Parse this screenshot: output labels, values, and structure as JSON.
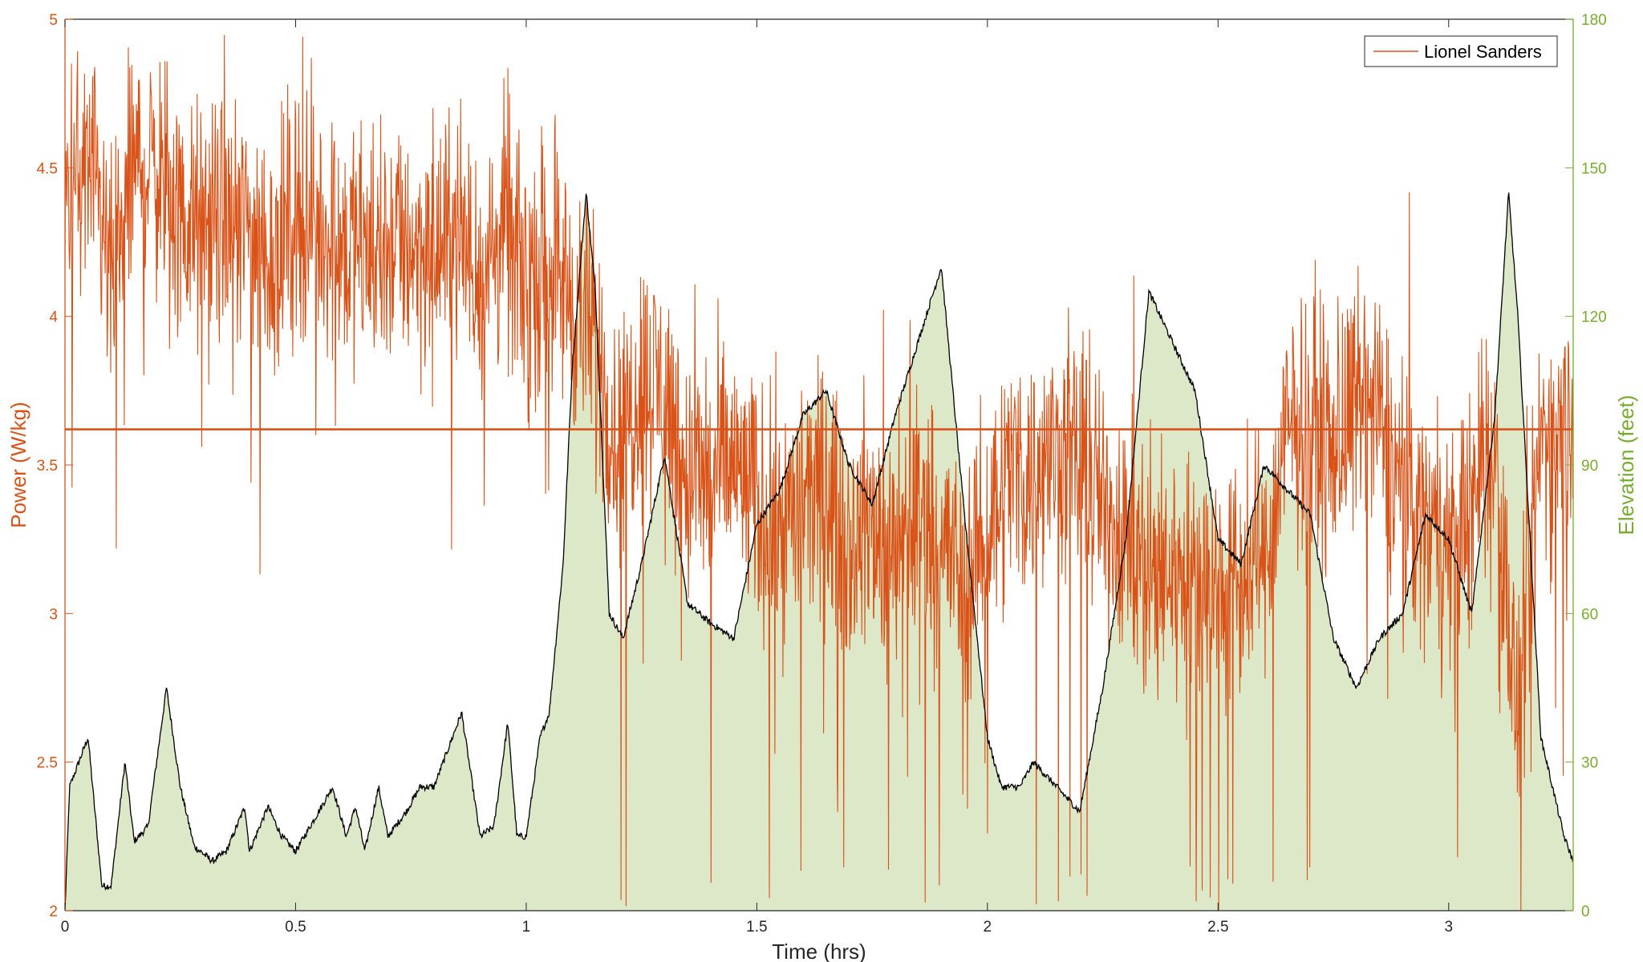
{
  "chart_data": {
    "type": "line",
    "title": "",
    "xlabel": "Time (hrs)",
    "ylabel_left": "Power (W/kg)",
    "ylabel_right": "Elevation (feet)",
    "xlim": [
      0,
      3.27
    ],
    "ylim_left": [
      2,
      5
    ],
    "ylim_right": [
      0,
      180
    ],
    "x_ticks": [
      "0",
      "0.5",
      "1",
      "1.5",
      "2",
      "2.5",
      "3"
    ],
    "y_ticks_left": [
      "2",
      "2.5",
      "3",
      "3.5",
      "4",
      "4.5",
      "5"
    ],
    "y_ticks_right": [
      "0",
      "30",
      "60",
      "90",
      "120",
      "150",
      "180"
    ],
    "grid": false,
    "legend": {
      "position": "top-right",
      "entries": [
        "Lionel Sanders"
      ]
    },
    "average_power": 3.62,
    "colors": {
      "power": "#d95319",
      "elevation_fill": "#dce8c8",
      "elevation_line": "#000000",
      "axis": "#262626",
      "right_axis": "#77ac30"
    },
    "series": [
      {
        "name": "Lionel Sanders",
        "axis": "left",
        "x": [
          0,
          0.05,
          0.1,
          0.15,
          0.2,
          0.25,
          0.3,
          0.35,
          0.4,
          0.45,
          0.5,
          0.55,
          0.6,
          0.65,
          0.7,
          0.75,
          0.8,
          0.85,
          0.9,
          0.95,
          1.0,
          1.05,
          1.1,
          1.15,
          1.2,
          1.25,
          1.3,
          1.35,
          1.4,
          1.45,
          1.5,
          1.55,
          1.6,
          1.65,
          1.7,
          1.75,
          1.8,
          1.85,
          1.9,
          1.95,
          2.0,
          2.05,
          2.1,
          2.15,
          2.2,
          2.25,
          2.3,
          2.35,
          2.4,
          2.45,
          2.5,
          2.55,
          2.6,
          2.65,
          2.7,
          2.75,
          2.8,
          2.85,
          2.9,
          2.95,
          3.0,
          3.05,
          3.1,
          3.15,
          3.2,
          3.25,
          3.27
        ],
        "values": [
          4.4,
          4.5,
          4.1,
          4.5,
          4.5,
          4.3,
          4.3,
          4.3,
          4.3,
          4.2,
          4.35,
          4.3,
          4.25,
          4.2,
          4.25,
          4.25,
          4.2,
          4.3,
          4.1,
          4.3,
          4.1,
          4.2,
          4.05,
          3.9,
          3.55,
          3.8,
          3.75,
          3.45,
          3.45,
          3.5,
          3.35,
          3.3,
          3.35,
          3.4,
          3.25,
          3.3,
          3.2,
          3.35,
          3.25,
          3.1,
          3.3,
          3.5,
          3.45,
          3.55,
          3.5,
          3.35,
          3.3,
          3.1,
          3.15,
          3.1,
          3.1,
          3.1,
          3.15,
          3.6,
          3.65,
          3.55,
          3.7,
          3.65,
          3.4,
          3.3,
          3.2,
          3.4,
          3.55,
          2.6,
          3.6,
          3.6,
          3.7
        ]
      },
      {
        "name": "Elevation",
        "axis": "right",
        "x": [
          0,
          0.01,
          0.05,
          0.08,
          0.1,
          0.13,
          0.15,
          0.18,
          0.22,
          0.25,
          0.28,
          0.32,
          0.35,
          0.39,
          0.4,
          0.44,
          0.47,
          0.5,
          0.55,
          0.58,
          0.61,
          0.63,
          0.65,
          0.68,
          0.7,
          0.74,
          0.77,
          0.8,
          0.86,
          0.9,
          0.93,
          0.96,
          0.98,
          1.0,
          1.03,
          1.05,
          1.08,
          1.1,
          1.13,
          1.15,
          1.18,
          1.21,
          1.25,
          1.3,
          1.35,
          1.4,
          1.45,
          1.5,
          1.55,
          1.6,
          1.65,
          1.7,
          1.75,
          1.8,
          1.85,
          1.9,
          1.95,
          2.0,
          2.03,
          2.07,
          2.1,
          2.15,
          2.2,
          2.25,
          2.3,
          2.35,
          2.4,
          2.45,
          2.5,
          2.55,
          2.6,
          2.65,
          2.7,
          2.75,
          2.8,
          2.85,
          2.9,
          2.95,
          3.0,
          3.05,
          3.1,
          3.13,
          3.15,
          3.2,
          3.25,
          3.27
        ],
        "values": [
          0,
          25,
          35,
          5,
          5,
          30,
          14,
          17,
          45,
          25,
          13,
          10,
          12,
          21,
          12,
          21,
          15,
          12,
          20,
          25,
          15,
          21,
          12,
          25,
          15,
          20,
          25,
          25,
          40,
          15,
          17,
          38,
          15,
          15,
          35,
          40,
          70,
          110,
          145,
          125,
          60,
          55,
          70,
          92,
          62,
          58,
          55,
          78,
          85,
          100,
          105,
          90,
          82,
          100,
          115,
          130,
          80,
          35,
          25,
          25,
          30,
          25,
          20,
          45,
          75,
          125,
          115,
          105,
          75,
          70,
          90,
          85,
          80,
          55,
          45,
          55,
          60,
          80,
          75,
          60,
          100,
          145,
          120,
          35,
          15,
          10
        ]
      }
    ]
  }
}
